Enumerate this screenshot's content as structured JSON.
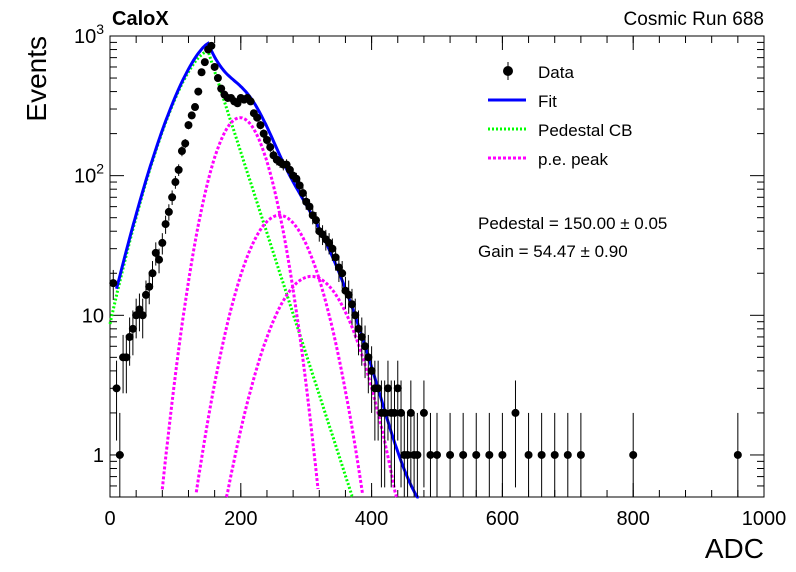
{
  "header": {
    "experiment": "CaloX",
    "run_label": "Cosmic Run 688"
  },
  "legend": [
    {
      "label": "Data",
      "style": "marker"
    },
    {
      "label": "Fit",
      "style": "line",
      "color": "#0000ff"
    },
    {
      "label": "Pedestal CB",
      "style": "dotted",
      "color": "#00ff00"
    },
    {
      "label": "p.e. peak",
      "style": "dotted",
      "color": "#ff00ff"
    }
  ],
  "fit_results": {
    "pedestal": "Pedestal = 150.00 ± 0.05",
    "gain": "Gain = 54.47 ± 0.90"
  },
  "chart_data": {
    "type": "scatter",
    "xlabel": "ADC",
    "ylabel": "Events",
    "xlim": [
      0,
      1000
    ],
    "ylim": [
      0.5,
      1000
    ],
    "yscale": "log",
    "grid": false,
    "legend_position": "top-right",
    "x_tick_labels": [
      "0",
      "200",
      "400",
      "600",
      "800",
      "1000"
    ],
    "y_tick_labels": [
      "1",
      "10",
      "10^2",
      "10^3"
    ],
    "pedestal_mean": 150.0,
    "gain": 54.47,
    "series": [
      {
        "name": "Data",
        "style": "markers-with-errors",
        "color": "#000000",
        "points": [
          [
            5,
            17
          ],
          [
            10,
            3
          ],
          [
            15,
            1
          ],
          [
            20,
            5
          ],
          [
            25,
            5
          ],
          [
            30,
            7
          ],
          [
            35,
            8
          ],
          [
            40,
            10
          ],
          [
            45,
            11
          ],
          [
            50,
            10
          ],
          [
            55,
            14
          ],
          [
            60,
            16
          ],
          [
            65,
            20
          ],
          [
            70,
            28
          ],
          [
            75,
            25
          ],
          [
            80,
            33
          ],
          [
            85,
            45
          ],
          [
            90,
            55
          ],
          [
            95,
            70
          ],
          [
            100,
            90
          ],
          [
            105,
            110
          ],
          [
            110,
            150
          ],
          [
            115,
            170
          ],
          [
            120,
            230
          ],
          [
            125,
            270
          ],
          [
            130,
            310
          ],
          [
            135,
            400
          ],
          [
            140,
            550
          ],
          [
            145,
            650
          ],
          [
            150,
            800
          ],
          [
            155,
            850
          ],
          [
            160,
            600
          ],
          [
            165,
            500
          ],
          [
            170,
            420
          ],
          [
            175,
            380
          ],
          [
            180,
            360
          ],
          [
            185,
            360
          ],
          [
            190,
            340
          ],
          [
            195,
            330
          ],
          [
            200,
            360
          ],
          [
            205,
            350
          ],
          [
            210,
            360
          ],
          [
            215,
            340
          ],
          [
            220,
            280
          ],
          [
            225,
            260
          ],
          [
            230,
            230
          ],
          [
            235,
            200
          ],
          [
            240,
            180
          ],
          [
            245,
            160
          ],
          [
            250,
            140
          ],
          [
            255,
            130
          ],
          [
            260,
            125
          ],
          [
            265,
            120
          ],
          [
            270,
            120
          ],
          [
            275,
            110
          ],
          [
            280,
            100
          ],
          [
            285,
            95
          ],
          [
            290,
            85
          ],
          [
            295,
            75
          ],
          [
            300,
            65
          ],
          [
            305,
            60
          ],
          [
            310,
            52
          ],
          [
            315,
            48
          ],
          [
            320,
            40
          ],
          [
            325,
            38
          ],
          [
            330,
            35
          ],
          [
            335,
            33
          ],
          [
            340,
            30
          ],
          [
            345,
            26
          ],
          [
            350,
            22
          ],
          [
            355,
            20
          ],
          [
            360,
            15
          ],
          [
            365,
            14
          ],
          [
            370,
            12
          ],
          [
            375,
            10
          ],
          [
            380,
            8
          ],
          [
            385,
            7
          ],
          [
            390,
            6
          ],
          [
            395,
            5
          ],
          [
            400,
            4
          ],
          [
            405,
            3
          ],
          [
            410,
            3
          ],
          [
            415,
            2
          ],
          [
            420,
            2
          ],
          [
            425,
            3
          ],
          [
            430,
            2
          ],
          [
            435,
            2
          ],
          [
            440,
            3
          ],
          [
            445,
            2
          ],
          [
            450,
            1
          ],
          [
            455,
            1
          ],
          [
            460,
            2
          ],
          [
            465,
            1
          ],
          [
            470,
            1
          ],
          [
            480,
            2
          ],
          [
            490,
            1
          ],
          [
            500,
            1
          ],
          [
            520,
            1
          ],
          [
            540,
            1
          ],
          [
            560,
            1
          ],
          [
            580,
            1
          ],
          [
            600,
            1
          ],
          [
            620,
            2
          ],
          [
            640,
            1
          ],
          [
            660,
            1
          ],
          [
            680,
            1
          ],
          [
            700,
            1
          ],
          [
            720,
            1
          ],
          [
            800,
            1
          ],
          [
            960,
            1
          ]
        ]
      },
      {
        "name": "Fit",
        "style": "line",
        "color": "#0000ff"
      },
      {
        "name": "Pedestal CB",
        "style": "dotted",
        "color": "#00ff00"
      },
      {
        "name": "p.e. peak",
        "style": "dotted",
        "color": "#ff00ff"
      }
    ]
  }
}
